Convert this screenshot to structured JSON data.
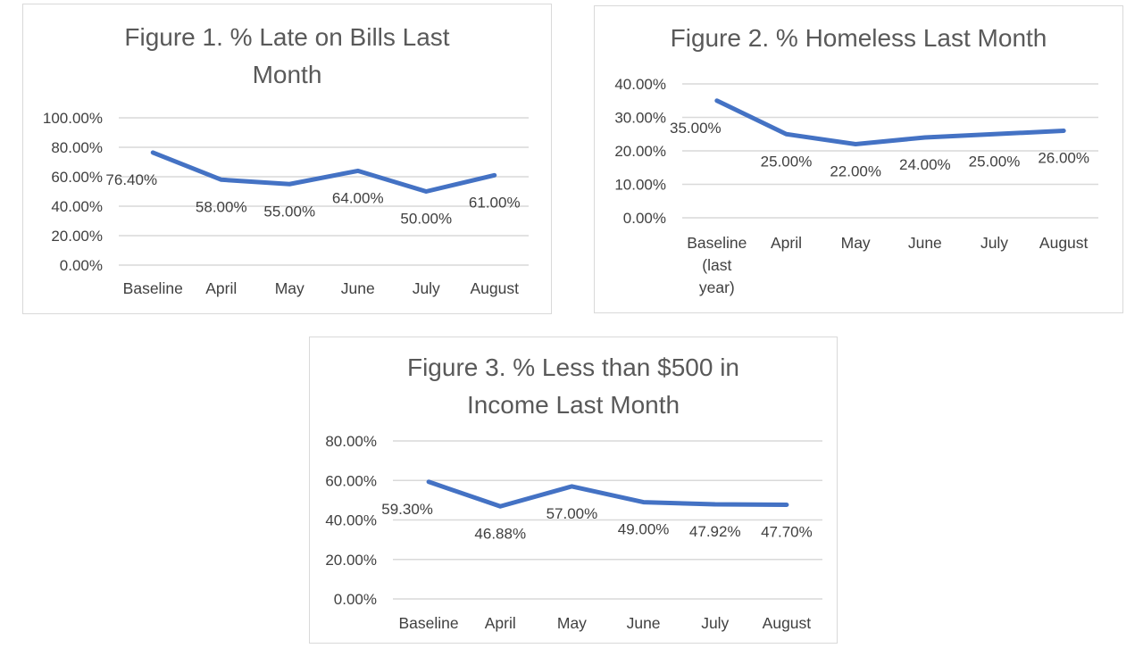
{
  "page": {
    "background": "#ffffff"
  },
  "colors": {
    "line": "#4472C4",
    "gridline": "#D9D9D9",
    "panel_border": "#D9D9D9",
    "title_text": "#595959",
    "axis_text": "#404040",
    "data_label_text": "#404040"
  },
  "chart_data": [
    {
      "type": "line",
      "title": "Figure 1. % Late on Bills Last Month",
      "categories": [
        "Baseline",
        "April",
        "May",
        "June",
        "July",
        "August"
      ],
      "values": [
        76.4,
        58.0,
        55.0,
        64.0,
        50.0,
        61.0
      ],
      "data_labels": [
        "76.40%",
        "58.00%",
        "55.00%",
        "64.00%",
        "50.00%",
        "61.00%"
      ],
      "y_tick_values": [
        0,
        20,
        40,
        60,
        80,
        100
      ],
      "y_tick_labels": [
        "0.00%",
        "20.00%",
        "40.00%",
        "60.00%",
        "80.00%",
        "100.00%"
      ],
      "ylim": [
        0,
        100
      ],
      "xlabel": "",
      "ylabel": "",
      "grid": true,
      "legend_position": "none"
    },
    {
      "type": "line",
      "title": "Figure 2. % Homeless Last Month",
      "categories": [
        "Baseline\n(last\nyear)",
        "April",
        "May",
        "June",
        "July",
        "August"
      ],
      "values": [
        35.0,
        25.0,
        22.0,
        24.0,
        25.0,
        26.0
      ],
      "data_labels": [
        "35.00%",
        "25.00%",
        "22.00%",
        "24.00%",
        "25.00%",
        "26.00%"
      ],
      "y_tick_values": [
        0,
        10,
        20,
        30,
        40
      ],
      "y_tick_labels": [
        "0.00%",
        "10.00%",
        "20.00%",
        "30.00%",
        "40.00%"
      ],
      "ylim": [
        0,
        40
      ],
      "xlabel": "",
      "ylabel": "",
      "grid": true,
      "legend_position": "none"
    },
    {
      "type": "line",
      "title": "Figure 3. % Less than $500 in Income Last Month",
      "categories": [
        "Baseline",
        "April",
        "May",
        "June",
        "July",
        "August"
      ],
      "values": [
        59.3,
        46.88,
        57.0,
        49.0,
        47.92,
        47.7
      ],
      "data_labels": [
        "59.30%",
        "46.88%",
        "57.00%",
        "49.00%",
        "47.92%",
        "47.70%"
      ],
      "y_tick_values": [
        0,
        20,
        40,
        60,
        80
      ],
      "y_tick_labels": [
        "0.00%",
        "20.00%",
        "40.00%",
        "60.00%",
        "80.00%"
      ],
      "ylim": [
        0,
        80
      ],
      "xlabel": "",
      "ylabel": "",
      "grid": true,
      "legend_position": "none"
    }
  ]
}
